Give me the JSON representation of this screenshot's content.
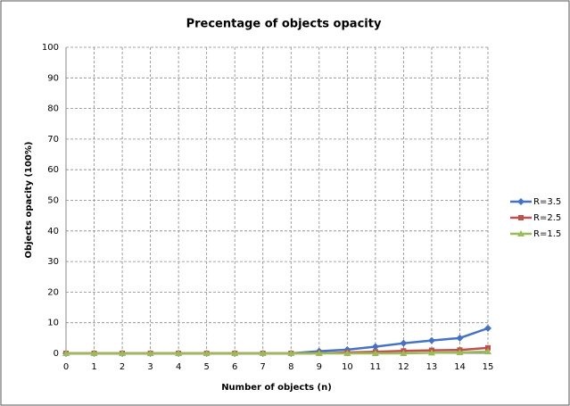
{
  "chart_data": {
    "type": "line",
    "title": "Precentage of objects opacity",
    "x_label": "Number of objects (n)",
    "y_label": "Objects opacity (100%)",
    "x": [
      0,
      1,
      2,
      3,
      4,
      5,
      6,
      7,
      8,
      9,
      10,
      11,
      12,
      13,
      14,
      15
    ],
    "series": [
      {
        "name": "R=3.5",
        "color": "#4472c4",
        "marker": "diamond",
        "values": [
          0,
          0,
          0,
          0,
          0,
          0,
          0,
          0,
          0,
          0.7,
          1.2,
          2.2,
          3.3,
          4.2,
          5,
          8.2
        ]
      },
      {
        "name": "R=2.5",
        "color": "#c0504d",
        "marker": "square",
        "values": [
          0,
          0,
          0,
          0,
          0,
          0,
          0,
          0,
          0,
          0,
          0.3,
          0.5,
          0.8,
          1,
          1.1,
          1.8
        ]
      },
      {
        "name": "R=1.5",
        "color": "#9bbb59",
        "marker": "triangle",
        "values": [
          0,
          0,
          0,
          0,
          0,
          0,
          0,
          0,
          0,
          0,
          0,
          0,
          0,
          0.2,
          0.3,
          0.6
        ]
      }
    ],
    "xlim": [
      0,
      15
    ],
    "xticks": [
      0,
      1,
      2,
      3,
      4,
      5,
      6,
      7,
      8,
      9,
      10,
      11,
      12,
      13,
      14,
      15
    ],
    "ylim": [
      0,
      100
    ],
    "yticks": [
      0,
      10,
      20,
      30,
      40,
      50,
      60,
      70,
      80,
      90,
      100
    ],
    "grid": true,
    "legend": "right"
  }
}
